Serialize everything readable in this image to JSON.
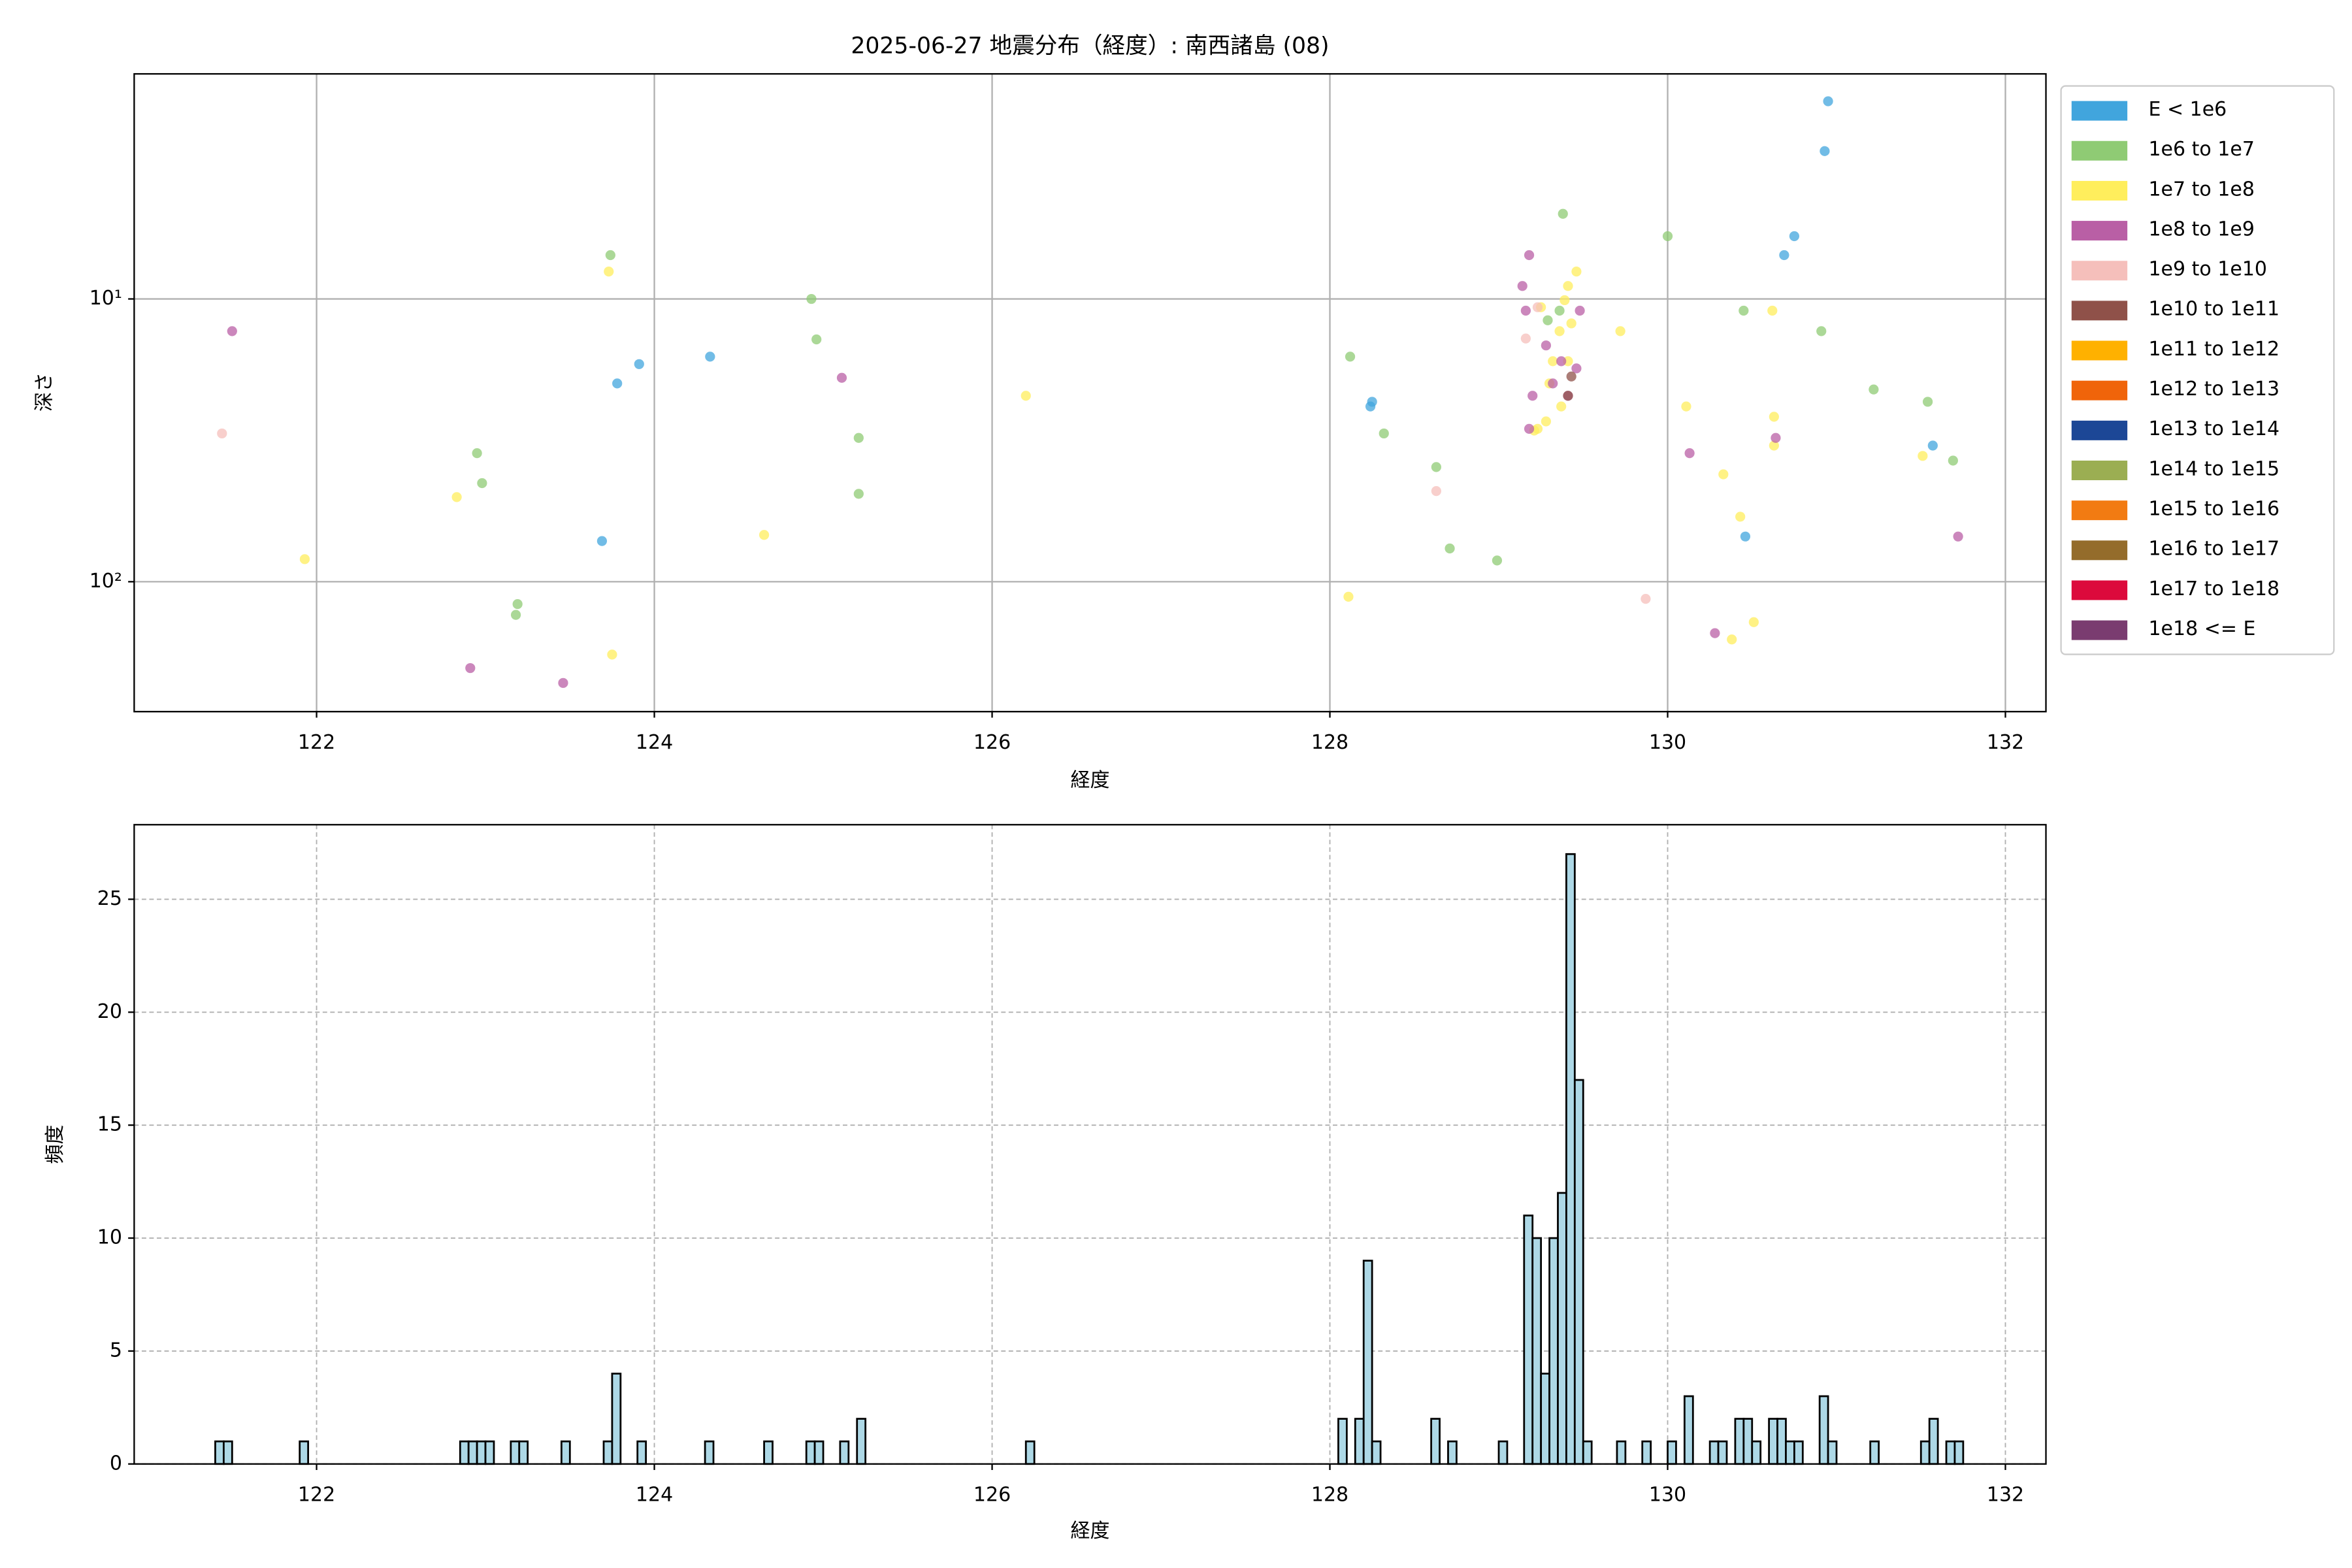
{
  "chart_data": [
    {
      "type": "scatter",
      "title": "2025-06-27 地震分布（経度）: 南西諸島 (08)",
      "xlabel": "経度",
      "ylabel": "深さ",
      "xlim": [
        120.92,
        132.24
      ],
      "ylim": [
        288,
        1.6
      ],
      "log_y": true,
      "xticks": [
        122,
        124,
        126,
        128,
        130,
        132
      ],
      "yticks": [
        {
          "value": 10,
          "label": "10¹"
        },
        {
          "value": 100,
          "label": "10²"
        }
      ],
      "grid": true,
      "legend": "outside-right",
      "series": [
        {
          "name": "E < 1e6",
          "color": "#41a5dd",
          "x": [
            130.95,
            130.93,
            130.75,
            130.69,
            128.25,
            128.24,
            123.91,
            123.78,
            124.33,
            123.69,
            131.57,
            130.46
          ],
          "y": [
            2.0,
            3.0,
            6.0,
            7.0,
            23.1,
            24.0,
            17.0,
            19.9,
            16.0,
            71.8,
            33.0,
            69.2
          ]
        },
        {
          "name": "1e6 to 1e7",
          "color": "#8fcb74",
          "x": [
            123.74,
            124.93,
            124.96,
            122.95,
            122.98,
            125.21,
            125.21,
            123.19,
            123.18,
            128.12,
            128.32,
            128.63,
            128.71,
            128.99,
            129.38,
            130.0,
            130.45,
            130.91,
            131.22,
            131.54,
            131.69,
            129.29,
            129.36
          ],
          "y": [
            7.0,
            10,
            13.9,
            35.1,
            44.8,
            31.0,
            48.9,
            120,
            131,
            16.0,
            29.9,
            39.3,
            76.3,
            84.1,
            5.0,
            6.0,
            11.0,
            13.0,
            20.9,
            23.1,
            37.3,
            11.9,
            11.0
          ]
        },
        {
          "name": "1e7 to 1e8",
          "color": "#ffee5c",
          "x": [
            123.73,
            121.93,
            122.83,
            124.65,
            123.75,
            126.2,
            128.11,
            129.72,
            130.11,
            130.33,
            130.43,
            130.51,
            130.38,
            130.62,
            130.63,
            130.63,
            131.51,
            129.46,
            129.41,
            129.32,
            129.28,
            129.23,
            129.37,
            129.41,
            129.3,
            129.21,
            129.43,
            129.39,
            129.25,
            129.36
          ],
          "y": [
            8.0,
            83.2,
            50.2,
            68.3,
            181,
            22.0,
            113,
            13.0,
            24.0,
            41.7,
            58.9,
            139,
            160,
            11.0,
            26.1,
            33.0,
            35.9,
            8.0,
            9.0,
            16.6,
            27.1,
            28.8,
            24.0,
            16.6,
            19.9,
            29.2,
            12.2,
            10.1,
            10.7,
            13.0
          ]
        },
        {
          "name": "1e8 to 1e9",
          "color": "#b95fa5",
          "x": [
            121.5,
            125.11,
            122.91,
            123.46,
            129.18,
            129.14,
            129.16,
            129.2,
            129.18,
            130.13,
            130.64,
            130.28,
            131.72,
            129.32,
            129.41,
            129.48,
            129.28,
            129.37,
            129.46
          ],
          "y": [
            13.0,
            19.0,
            202,
            228,
            7.0,
            9.0,
            11.0,
            22.0,
            28.8,
            35.1,
            31.0,
            152,
            69.2,
            19.9,
            22.0,
            11.0,
            14.6,
            16.6,
            17.6
          ]
        },
        {
          "name": "1e9 to 1e10",
          "color": "#f5bfbb",
          "x": [
            121.44,
            128.63,
            129.87,
            129.16,
            129.23
          ],
          "y": [
            29.9,
            47.8,
            115,
            13.8,
            10.7
          ]
        },
        {
          "name": "1e10 to 1e11",
          "color": "#8f5149",
          "x": [
            129.41,
            129.43
          ],
          "y": [
            22.0,
            18.8
          ]
        },
        {
          "name": "1e11 to 1e12",
          "color": "#ffb100",
          "x": [],
          "y": []
        },
        {
          "name": "1e12 to 1e13",
          "color": "#f0640a",
          "x": [],
          "y": []
        },
        {
          "name": "1e13 to 1e14",
          "color": "#1c4796",
          "x": [],
          "y": []
        },
        {
          "name": "1e14 to 1e15",
          "color": "#9bae52",
          "x": [],
          "y": []
        },
        {
          "name": "1e15 to 1e16",
          "color": "#f27b12",
          "x": [],
          "y": []
        },
        {
          "name": "1e16 to 1e17",
          "color": "#946c2b",
          "x": [],
          "y": []
        },
        {
          "name": "1e17 to 1e18",
          "color": "#dc0a3c",
          "x": [],
          "y": []
        },
        {
          "name": "1e18 <= E",
          "color": "#7a3c70",
          "x": [],
          "y": []
        }
      ]
    },
    {
      "type": "histogram",
      "xlabel": "経度",
      "ylabel": "頻度",
      "color": "#add8e6",
      "edgecolor": "#000000",
      "xlim": [
        120.92,
        132.24
      ],
      "ylim": [
        0,
        28.3
      ],
      "xticks": [
        122,
        124,
        126,
        128,
        130,
        132
      ],
      "yticks": [
        0,
        5,
        10,
        15,
        20,
        25
      ],
      "grid": true,
      "bins": [
        121.4,
        121.45,
        121.5,
        121.55,
        121.6,
        121.65,
        121.7,
        121.75,
        121.8,
        121.85,
        121.9,
        121.95,
        122,
        122.05,
        122.1,
        122.15,
        122.2,
        122.25,
        122.3,
        122.35,
        122.4,
        122.45,
        122.5,
        122.55,
        122.6,
        122.65,
        122.7,
        122.75,
        122.8,
        122.85,
        122.9,
        122.95,
        123,
        123.05,
        123.1,
        123.15,
        123.2,
        123.25,
        123.3,
        123.35,
        123.4,
        123.45,
        123.5,
        123.55,
        123.6,
        123.65,
        123.7,
        123.75,
        123.8,
        123.85,
        123.9,
        123.95,
        124,
        124.05,
        124.1,
        124.15,
        124.2,
        124.25,
        124.3,
        124.35,
        124.4,
        124.45,
        124.5,
        124.55,
        124.6,
        124.65,
        124.7,
        124.75,
        124.8,
        124.85,
        124.9,
        124.95,
        125,
        125.05,
        125.1,
        125.15,
        125.2,
        125.25,
        125.3,
        125.35,
        125.4,
        125.45,
        125.5,
        125.55,
        125.6,
        125.65,
        125.7,
        125.75,
        125.8,
        125.85,
        125.9,
        125.95,
        126,
        126.05,
        126.1,
        126.15,
        126.2,
        126.25,
        126.3,
        126.35,
        126.4,
        126.45,
        126.5,
        126.55,
        126.6,
        126.65,
        126.7,
        126.75,
        126.8,
        126.85,
        126.9,
        126.95,
        127,
        127.05,
        127.1,
        127.15,
        127.2,
        127.25,
        127.3,
        127.35,
        127.4,
        127.45,
        127.5,
        127.55,
        127.6,
        127.65,
        127.7,
        127.75,
        127.8,
        127.85,
        127.9,
        127.95,
        128,
        128.05,
        128.1,
        128.15,
        128.2,
        128.25,
        128.3,
        128.35,
        128.4,
        128.45,
        128.5,
        128.55,
        128.6,
        128.65,
        128.7,
        128.75,
        128.8,
        128.85,
        128.9,
        128.95,
        129,
        129.05,
        129.1,
        129.15,
        129.2,
        129.25,
        129.3,
        129.35,
        129.4,
        129.45,
        129.5,
        129.55,
        129.6,
        129.65,
        129.7,
        129.75,
        129.8,
        129.85,
        129.9,
        129.95,
        130,
        130.05,
        130.1,
        130.15,
        130.2,
        130.25,
        130.3,
        130.35,
        130.4,
        130.45,
        130.5,
        130.55,
        130.6,
        130.65,
        130.7,
        130.75,
        130.8,
        130.85,
        130.9,
        130.95,
        131,
        131.05,
        131.1,
        131.15,
        131.2,
        131.25,
        131.3,
        131.35,
        131.4,
        131.45,
        131.5,
        131.55,
        131.6,
        131.65,
        131.7,
        131.75
      ],
      "values": [
        1,
        1,
        0,
        0,
        0,
        0,
        0,
        0,
        0,
        0,
        1,
        0,
        0,
        0,
        0,
        0,
        0,
        0,
        0,
        0,
        0,
        0,
        0,
        0,
        0,
        0,
        0,
        0,
        0,
        1,
        1,
        1,
        1,
        0,
        0,
        1,
        1,
        0,
        0,
        0,
        0,
        1,
        0,
        0,
        0,
        0,
        1,
        4,
        0,
        0,
        1,
        0,
        0,
        0,
        0,
        0,
        0,
        0,
        1,
        0,
        0,
        0,
        0,
        0,
        0,
        1,
        0,
        0,
        0,
        0,
        1,
        1,
        0,
        0,
        1,
        0,
        2,
        0,
        0,
        0,
        0,
        0,
        0,
        0,
        0,
        0,
        0,
        0,
        0,
        0,
        0,
        0,
        0,
        0,
        0,
        0,
        1,
        0,
        0,
        0,
        0,
        0,
        0,
        0,
        0,
        0,
        0,
        0,
        0,
        0,
        0,
        0,
        0,
        0,
        0,
        0,
        0,
        0,
        0,
        0,
        0,
        0,
        0,
        0,
        0,
        0,
        0,
        0,
        0,
        0,
        0,
        0,
        0,
        2,
        0,
        2,
        9,
        1,
        0,
        0,
        0,
        0,
        0,
        0,
        2,
        0,
        1,
        0,
        0,
        0,
        0,
        0,
        1,
        0,
        0,
        11,
        10,
        4,
        10,
        12,
        27,
        17,
        1,
        0,
        0,
        0,
        1,
        0,
        0,
        1,
        0,
        0,
        1,
        0,
        3,
        0,
        0,
        1,
        1,
        0,
        2,
        2,
        1,
        0,
        2,
        2,
        1,
        1,
        0,
        0,
        3,
        1,
        0,
        0,
        0,
        0,
        1,
        0,
        0,
        0,
        0,
        0,
        1,
        2,
        0,
        1,
        1
      ]
    }
  ]
}
